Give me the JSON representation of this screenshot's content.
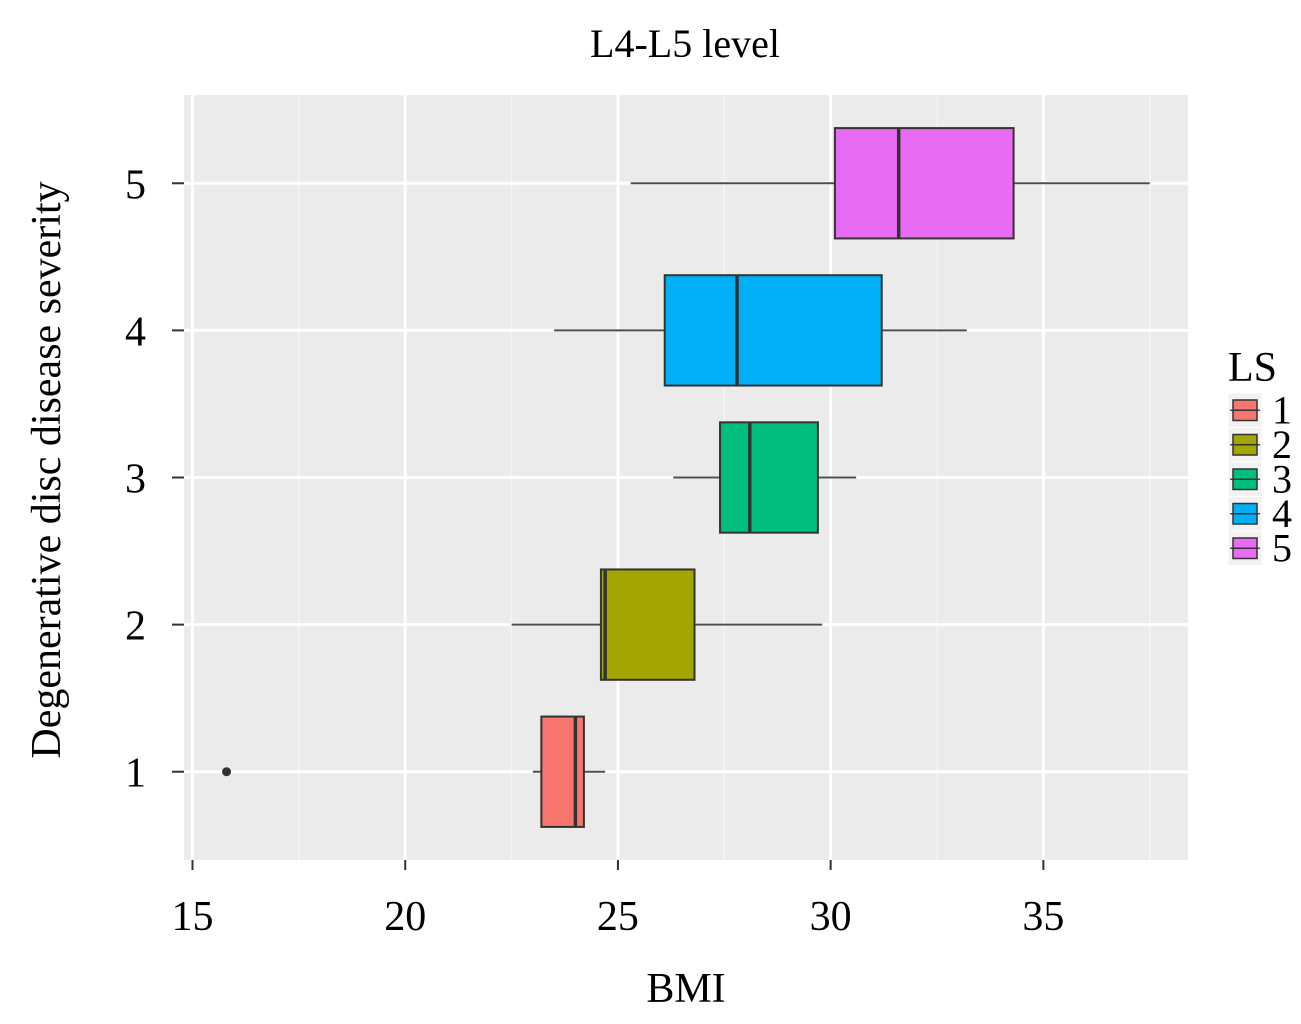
{
  "chart_data": {
    "type": "boxplot",
    "orientation": "horizontal",
    "title": "L4-L5 level",
    "xlabel": "BMI",
    "ylabel": "Degenerative disc disease severity",
    "xlim": [
      14.8,
      38.4
    ],
    "ylim": [
      0.4,
      5.6
    ],
    "x_ticks": [
      15,
      20,
      25,
      30,
      35
    ],
    "x_tick_labels": [
      "15",
      "20",
      "25",
      "30",
      "35"
    ],
    "y_ticks": [
      1,
      2,
      3,
      4,
      5
    ],
    "y_tick_labels": [
      "1",
      "2",
      "3",
      "4",
      "5"
    ],
    "grid": true,
    "background": "#ebebeb",
    "legend": {
      "title": "LS",
      "position": "right",
      "entries": [
        "1",
        "2",
        "3",
        "4",
        "5"
      ]
    },
    "series": [
      {
        "name": "1",
        "y": 1,
        "color": "#f8766d",
        "whisker_low": 23.0,
        "q1": 23.2,
        "median": 24.0,
        "q3": 24.2,
        "whisker_high": 24.7,
        "outliers": [
          15.8
        ]
      },
      {
        "name": "2",
        "y": 2,
        "color": "#a3a500",
        "whisker_low": 22.5,
        "q1": 24.6,
        "median": 24.7,
        "q3": 26.8,
        "whisker_high": 29.8,
        "outliers": []
      },
      {
        "name": "3",
        "y": 3,
        "color": "#00bf7d",
        "whisker_low": 26.3,
        "q1": 27.4,
        "median": 28.1,
        "q3": 29.7,
        "whisker_high": 30.6,
        "outliers": []
      },
      {
        "name": "4",
        "y": 4,
        "color": "#00b0f6",
        "whisker_low": 23.5,
        "q1": 26.1,
        "median": 27.8,
        "q3": 31.2,
        "whisker_high": 33.2,
        "outliers": []
      },
      {
        "name": "5",
        "y": 5,
        "color": "#e76bf3",
        "whisker_low": 25.3,
        "q1": 30.1,
        "median": 31.6,
        "q3": 34.3,
        "whisker_high": 37.5,
        "outliers": []
      }
    ]
  }
}
